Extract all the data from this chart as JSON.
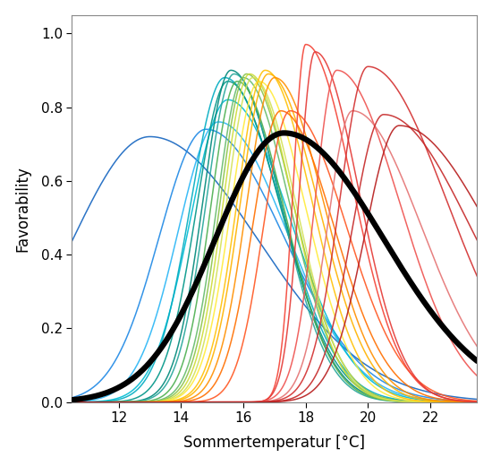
{
  "title": "",
  "xlabel": "Sommertemperatur [°C]",
  "ylabel": "Favorability",
  "xlim": [
    10.5,
    23.5
  ],
  "ylim": [
    0.0,
    1.05
  ],
  "xticks": [
    12,
    14,
    16,
    18,
    20,
    22
  ],
  "yticks": [
    0.0,
    0.2,
    0.4,
    0.6,
    0.8,
    1.0
  ],
  "background_color": "#ffffff",
  "ecotypes": [
    {
      "mu": 13.0,
      "sigma_l": 2.5,
      "sigma_r": 3.5,
      "peak": 0.72,
      "color": "#1565C0"
    },
    {
      "mu": 14.8,
      "sigma_l": 1.5,
      "sigma_r": 2.5,
      "peak": 0.74,
      "color": "#1E88E5"
    },
    {
      "mu": 15.2,
      "sigma_l": 1.3,
      "sigma_r": 2.2,
      "peak": 0.76,
      "color": "#29B6F6"
    },
    {
      "mu": 15.5,
      "sigma_l": 1.2,
      "sigma_r": 2.0,
      "peak": 0.82,
      "color": "#00BCD4"
    },
    {
      "mu": 15.4,
      "sigma_l": 1.1,
      "sigma_r": 1.8,
      "peak": 0.88,
      "color": "#00ACC1"
    },
    {
      "mu": 15.5,
      "sigma_l": 1.0,
      "sigma_r": 1.7,
      "peak": 0.87,
      "color": "#009688"
    },
    {
      "mu": 15.6,
      "sigma_l": 0.9,
      "sigma_r": 1.6,
      "peak": 0.9,
      "color": "#00897B"
    },
    {
      "mu": 15.7,
      "sigma_l": 0.9,
      "sigma_r": 1.5,
      "peak": 0.89,
      "color": "#26A69A"
    },
    {
      "mu": 15.8,
      "sigma_l": 0.85,
      "sigma_r": 1.5,
      "peak": 0.87,
      "color": "#4CAF50"
    },
    {
      "mu": 16.0,
      "sigma_l": 0.85,
      "sigma_r": 1.5,
      "peak": 0.88,
      "color": "#66BB6A"
    },
    {
      "mu": 16.1,
      "sigma_l": 0.85,
      "sigma_r": 1.5,
      "peak": 0.89,
      "color": "#8BC34A"
    },
    {
      "mu": 16.2,
      "sigma_l": 0.85,
      "sigma_r": 1.4,
      "peak": 0.89,
      "color": "#CDDC39"
    },
    {
      "mu": 16.3,
      "sigma_l": 0.85,
      "sigma_r": 1.4,
      "peak": 0.88,
      "color": "#D4E157"
    },
    {
      "mu": 16.5,
      "sigma_l": 0.9,
      "sigma_r": 1.5,
      "peak": 0.87,
      "color": "#FFEB3B"
    },
    {
      "mu": 16.7,
      "sigma_l": 0.9,
      "sigma_r": 1.5,
      "peak": 0.9,
      "color": "#FFC107"
    },
    {
      "mu": 16.8,
      "sigma_l": 0.9,
      "sigma_r": 1.6,
      "peak": 0.89,
      "color": "#FFB300"
    },
    {
      "mu": 17.0,
      "sigma_l": 0.9,
      "sigma_r": 1.6,
      "peak": 0.88,
      "color": "#FF8F00"
    },
    {
      "mu": 17.2,
      "sigma_l": 0.9,
      "sigma_r": 1.7,
      "peak": 0.79,
      "color": "#FF6F00"
    },
    {
      "mu": 17.5,
      "sigma_l": 0.85,
      "sigma_r": 1.8,
      "peak": 0.79,
      "color": "#FF5722"
    },
    {
      "mu": 18.0,
      "sigma_l": 0.4,
      "sigma_r": 1.5,
      "peak": 0.97,
      "color": "#F44336"
    },
    {
      "mu": 18.3,
      "sigma_l": 0.5,
      "sigma_r": 1.4,
      "peak": 0.95,
      "color": "#E53935"
    },
    {
      "mu": 19.0,
      "sigma_l": 0.7,
      "sigma_r": 2.0,
      "peak": 0.9,
      "color": "#EF5350"
    },
    {
      "mu": 19.5,
      "sigma_l": 0.8,
      "sigma_r": 2.2,
      "peak": 0.79,
      "color": "#E57373"
    },
    {
      "mu": 20.0,
      "sigma_l": 0.9,
      "sigma_r": 2.5,
      "peak": 0.91,
      "color": "#D32F2F"
    },
    {
      "mu": 20.5,
      "sigma_l": 1.0,
      "sigma_r": 2.8,
      "peak": 0.78,
      "color": "#C62828"
    },
    {
      "mu": 21.0,
      "sigma_l": 1.1,
      "sigma_r": 3.0,
      "peak": 0.75,
      "color": "#B71C1C"
    }
  ],
  "main_curve": {
    "mu": 17.3,
    "sigma_l": 2.2,
    "sigma_r": 3.2,
    "peak": 0.73,
    "color": "#000000",
    "lw": 4.5
  }
}
